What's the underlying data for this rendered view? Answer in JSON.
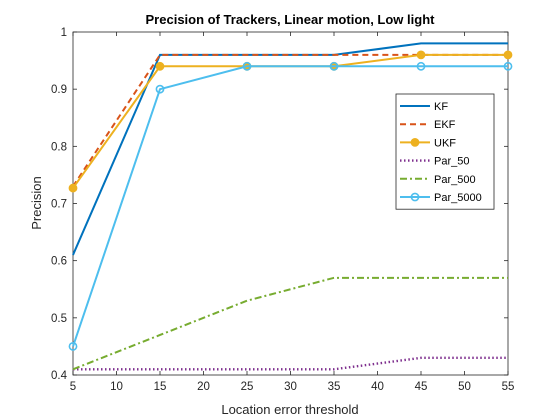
{
  "chart_data": {
    "type": "line",
    "title": "Precision of Trackers, Linear motion, Low light",
    "xlabel": "Location error threshold",
    "ylabel": "Precision",
    "xlim": [
      5,
      55
    ],
    "ylim": [
      0.4,
      1.0
    ],
    "xticks": [
      5,
      10,
      15,
      20,
      25,
      30,
      35,
      40,
      45,
      50,
      55
    ],
    "yticks": [
      0.4,
      0.5,
      0.6,
      0.7,
      0.8,
      0.9,
      1
    ],
    "grid": false,
    "legend_position": "top-right",
    "x": [
      5,
      15,
      25,
      35,
      45,
      55
    ],
    "series": [
      {
        "name": "KF",
        "values": [
          0.61,
          0.96,
          0.96,
          0.96,
          0.98,
          0.98
        ],
        "color": "#0072BD",
        "line": "solid",
        "marker": "none"
      },
      {
        "name": "EKF",
        "values": [
          0.73,
          0.96,
          0.96,
          0.96,
          0.96,
          0.96
        ],
        "color": "#D95319",
        "line": "dashed",
        "marker": "none"
      },
      {
        "name": "UKF",
        "values": [
          0.727,
          0.94,
          0.94,
          0.94,
          0.96,
          0.96
        ],
        "color": "#EDB120",
        "line": "solid",
        "marker": "filled-circle"
      },
      {
        "name": "Par_50",
        "values": [
          0.41,
          0.41,
          0.41,
          0.41,
          0.43,
          0.43
        ],
        "color": "#7E2F8E",
        "line": "dotted",
        "marker": "none"
      },
      {
        "name": "Par_500",
        "values": [
          0.41,
          0.47,
          0.53,
          0.57,
          0.57,
          0.57
        ],
        "color": "#77AC30",
        "line": "dashdot",
        "marker": "none"
      },
      {
        "name": "Par_5000",
        "values": [
          0.45,
          0.9,
          0.94,
          0.94,
          0.94,
          0.94
        ],
        "color": "#4DBEEE",
        "line": "solid",
        "marker": "open-circle"
      }
    ]
  }
}
